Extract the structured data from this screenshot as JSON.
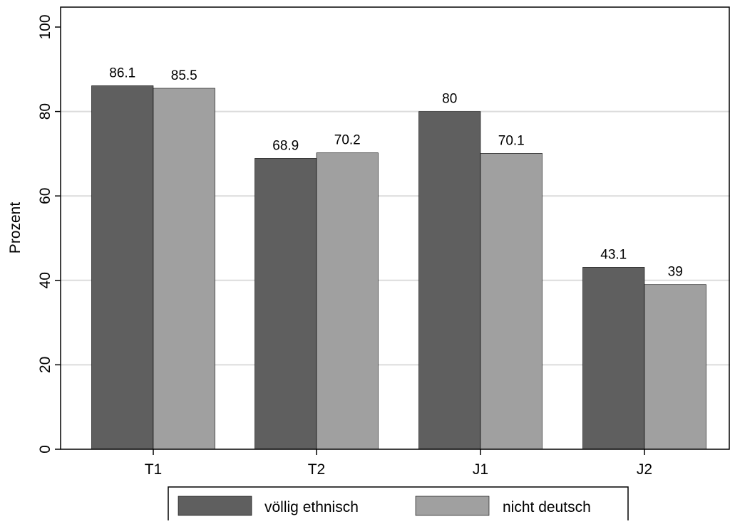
{
  "chart_data": {
    "type": "bar",
    "categories": [
      "T1",
      "T2",
      "J1",
      "J2"
    ],
    "series": [
      {
        "name": "völlig ethnisch",
        "values": [
          86.1,
          68.9,
          80,
          43.1
        ],
        "color": "#5f5f5f"
      },
      {
        "name": "nicht deutsch",
        "values": [
          85.5,
          70.2,
          70.1,
          39
        ],
        "color": "#a0a0a0"
      }
    ],
    "value_labels": [
      [
        "86.1",
        "68.9",
        "80",
        "43.1"
      ],
      [
        "85.5",
        "70.2",
        "70.1",
        "39"
      ]
    ],
    "ylabel": "Prozent",
    "ylim": [
      0,
      100
    ],
    "yticks": [
      0,
      20,
      40,
      60,
      80,
      100
    ],
    "ytick_labels": [
      "0",
      "20",
      "40",
      "60",
      "80",
      "100"
    ],
    "grid": true,
    "legend_position": "bottom"
  }
}
